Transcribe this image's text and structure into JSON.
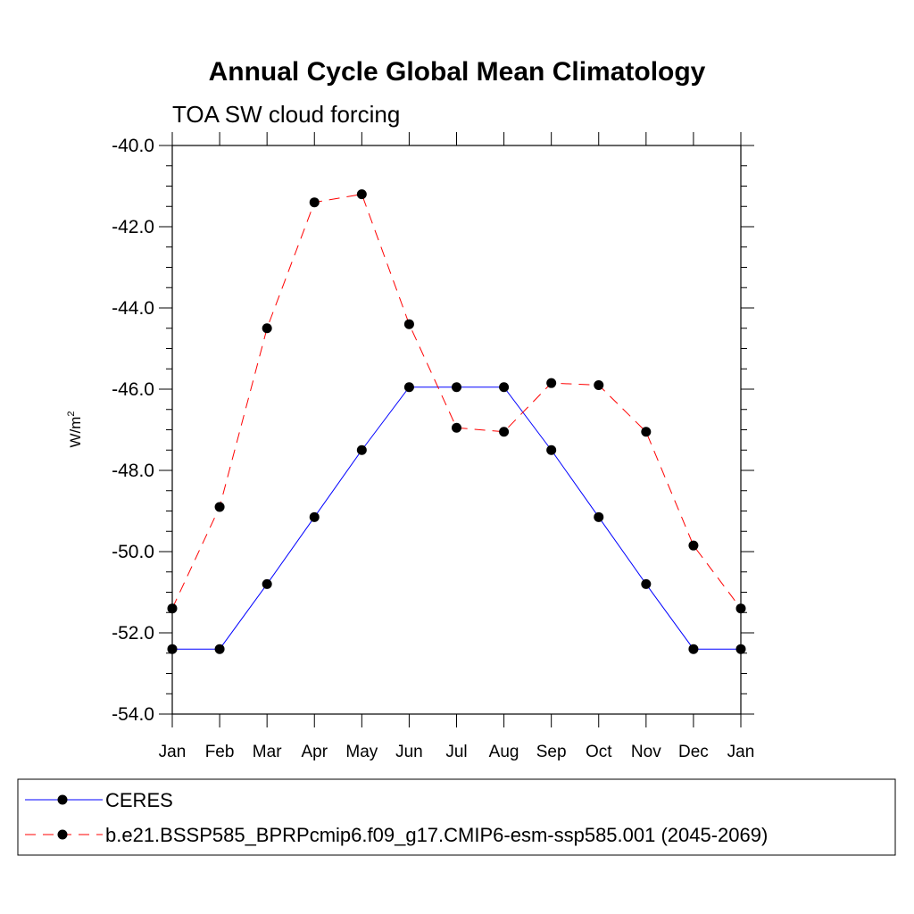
{
  "chart_data": {
    "type": "line",
    "title": "Annual Cycle Global Mean Climatology",
    "subtitle": "TOA SW cloud forcing",
    "ylabel_base": "W/m",
    "ylabel_sup": "2",
    "categories": [
      "Jan",
      "Feb",
      "Mar",
      "Apr",
      "May",
      "Jun",
      "Jul",
      "Aug",
      "Sep",
      "Oct",
      "Nov",
      "Dec",
      "Jan"
    ],
    "ylim": [
      -54.0,
      -40.0
    ],
    "yticks": [
      -40.0,
      -42.0,
      -44.0,
      -46.0,
      -48.0,
      -50.0,
      -52.0,
      -54.0
    ],
    "ytick_labels": [
      "-40.0",
      "-42.0",
      "-44.0",
      "-46.0",
      "-48.0",
      "-50.0",
      "-52.0",
      "-54.0"
    ],
    "series": [
      {
        "name": "CERES",
        "color": "#0000ff",
        "dash": "solid",
        "values": [
          -52.4,
          -52.4,
          -50.8,
          -49.15,
          -47.5,
          -45.95,
          -45.95,
          -45.95,
          -47.5,
          -49.15,
          -50.8,
          -52.4,
          -52.4
        ]
      },
      {
        "name": "b.e21.BSSP585_BPRPcmip6.f09_g17.CMIP6-esm-ssp585.001 (2045-2069)",
        "color": "#ff0000",
        "dash": "dashed",
        "values": [
          -51.4,
          -48.9,
          -44.5,
          -41.4,
          -41.2,
          -44.4,
          -46.95,
          -47.05,
          -45.85,
          -45.9,
          -47.05,
          -49.85,
          -51.4
        ]
      }
    ],
    "legend_position": "bottom",
    "grid": false
  }
}
